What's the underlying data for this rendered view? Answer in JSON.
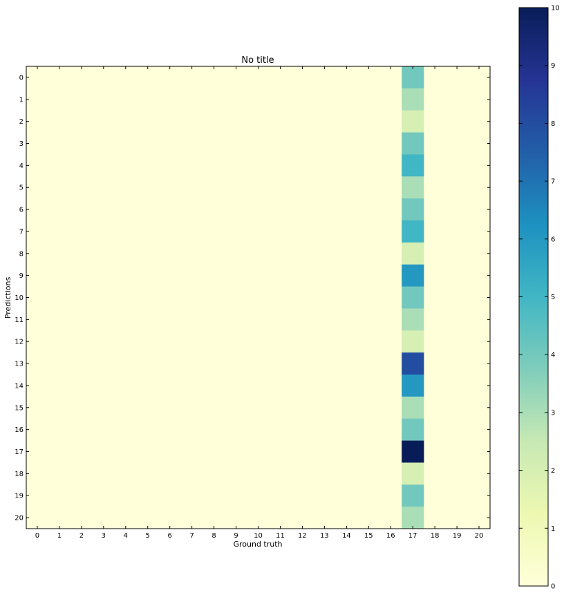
{
  "chart_data": {
    "type": "heatmap",
    "title": "No title",
    "xlabel": "Ground truth",
    "ylabel": "Predictions",
    "x_categories": [
      "0",
      "1",
      "2",
      "3",
      "4",
      "5",
      "6",
      "7",
      "8",
      "9",
      "10",
      "11",
      "12",
      "13",
      "14",
      "15",
      "16",
      "17",
      "18",
      "19",
      "20"
    ],
    "y_categories": [
      "0",
      "1",
      "2",
      "3",
      "4",
      "5",
      "6",
      "7",
      "8",
      "9",
      "10",
      "11",
      "12",
      "13",
      "14",
      "15",
      "16",
      "17",
      "18",
      "19",
      "20"
    ],
    "nonzero_column": "17",
    "column_17_values": [
      4,
      3,
      2,
      4,
      5,
      3,
      4,
      5,
      2,
      6,
      4,
      3,
      2,
      8,
      6,
      3,
      4,
      10,
      2,
      4,
      3
    ],
    "default_value": 0,
    "colormap": "YlGnBu",
    "color_stops": [
      "#ffffd9",
      "#edf8b1",
      "#c7e9b4",
      "#7fcdbb",
      "#41b6c4",
      "#1d91c0",
      "#225ea8",
      "#253494",
      "#081d58"
    ],
    "colorbar": {
      "vmin": 0,
      "vmax": 10,
      "tick_labels": [
        "0",
        "1",
        "2",
        "3",
        "4",
        "5",
        "6",
        "7",
        "8",
        "9",
        "10"
      ]
    },
    "grid": false,
    "legend": "none"
  }
}
